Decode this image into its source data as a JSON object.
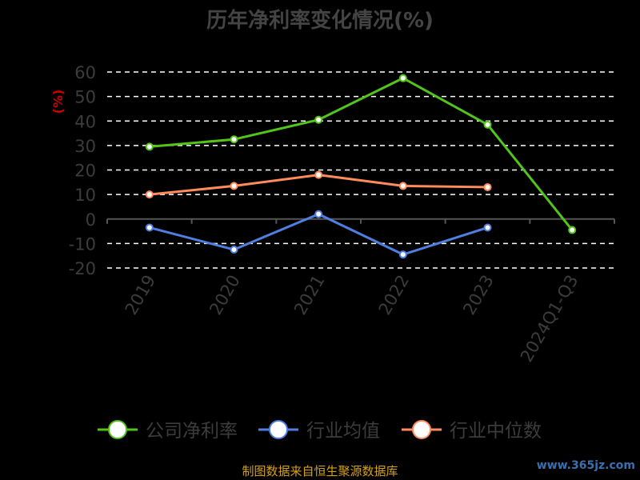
{
  "chart_data": {
    "type": "line",
    "title": "历年净利率变化情况(%)",
    "ylabel": "(%)",
    "xlabel": "",
    "categories": [
      "2019",
      "2020",
      "2021",
      "2022",
      "2023",
      "2024Q1-Q3"
    ],
    "ylim": [
      -20,
      60
    ],
    "yticks": [
      60,
      50,
      40,
      30,
      20,
      10,
      0,
      -10,
      -20
    ],
    "grid": true,
    "legend_position": "bottom",
    "series": [
      {
        "name": "公司净利率",
        "color": "#52c41a",
        "values": [
          29.5,
          32.5,
          40.5,
          57.5,
          38.5,
          -4.5
        ]
      },
      {
        "name": "行业均值",
        "color": "#4f7fe0",
        "values": [
          -3.5,
          -12.5,
          2.0,
          -14.5,
          -3.5,
          null
        ]
      },
      {
        "name": "行业中位数",
        "color": "#ff8c5a",
        "values": [
          10.0,
          13.5,
          18.0,
          13.5,
          13.0,
          null
        ]
      }
    ]
  },
  "footer": {
    "source": "制图数据来自恒生聚源数据库",
    "watermark": "www.365jz.com"
  }
}
